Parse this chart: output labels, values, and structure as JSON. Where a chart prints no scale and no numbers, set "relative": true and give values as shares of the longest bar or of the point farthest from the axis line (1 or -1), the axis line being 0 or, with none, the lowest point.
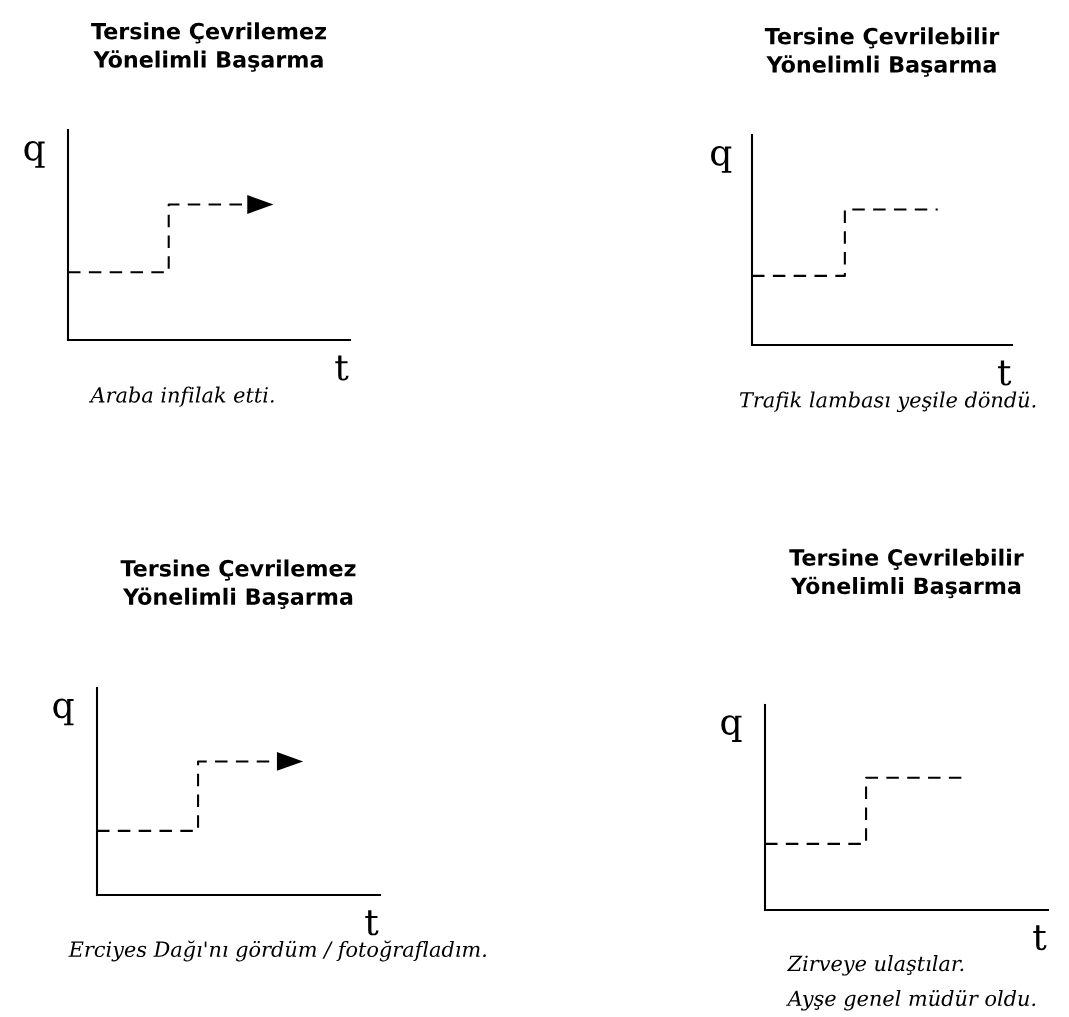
{
  "chart_data": [
    {
      "type": "step",
      "title": "Tersine Çevrilemez\nYönelimli Başarma",
      "xlabel": "t",
      "ylabel": "q",
      "relative": true,
      "tick_labels": false,
      "line_style": "dashed",
      "categories": [
        null,
        null,
        null
      ],
      "series": [
        {
          "color": "#000000",
          "values": [
            0.5,
            1,
            1
          ]
        }
      ],
      "annotations": [
        "Araba infilak etti."
      ]
    },
    {
      "type": "step",
      "title": "Tersine Çevrilebilir\nYönelimli Başarma",
      "xlabel": "t",
      "ylabel": "q",
      "relative": true,
      "tick_labels": false,
      "line_style": "dashed",
      "categories": [
        null,
        null,
        null
      ],
      "series": [
        {
          "color": "#000000",
          "values": [
            0.51,
            1,
            1
          ]
        }
      ],
      "annotations": [
        "Trafik lambası yeşile döndü."
      ]
    },
    {
      "type": "step",
      "title": "Tersine Çevrilemez\nYönelimli Başarma",
      "xlabel": "t",
      "ylabel": "q",
      "relative": true,
      "tick_labels": false,
      "line_style": "dashed",
      "categories": [
        null,
        null,
        null
      ],
      "series": [
        {
          "color": "#000000",
          "values": [
            0.48,
            1,
            1
          ]
        }
      ],
      "annotations": [
        "Erciyes Dağı'nı gördüm / fotoğrafladım."
      ]
    },
    {
      "type": "step",
      "title": "Tersine Çevrilebilir\nYönelimli Başarma",
      "xlabel": "t",
      "ylabel": "q",
      "relative": true,
      "tick_labels": false,
      "line_style": "dashed",
      "categories": [
        null,
        null,
        null
      ],
      "series": [
        {
          "color": "#000000",
          "values": [
            0.5,
            1,
            1
          ]
        }
      ],
      "annotations": [
        "Zirveye ulaştılar.",
        "Ayşe genel müdür oldu."
      ]
    }
  ]
}
